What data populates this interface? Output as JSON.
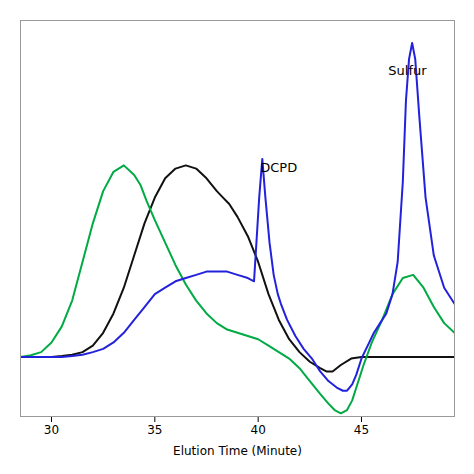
{
  "chart_data": {
    "type": "line",
    "xlabel": "Elution Time (Minute)",
    "xlim": [
      28.5,
      49.5
    ],
    "ylim": [
      -0.18,
      1.05
    ],
    "xticks": [
      30,
      35,
      40,
      45
    ],
    "tick_labels": "x",
    "grid": false,
    "annotations": [
      {
        "text": "DCPD",
        "x": 40.1,
        "y": 0.58
      },
      {
        "text": "Sulfur",
        "x": 46.3,
        "y": 0.88
      }
    ],
    "series": [
      {
        "color": "#111111",
        "x": [
          28.5,
          29.0,
          29.5,
          30.0,
          30.5,
          31.0,
          31.5,
          32.0,
          32.5,
          33.0,
          33.5,
          34.0,
          34.5,
          35.0,
          35.5,
          36.0,
          36.5,
          37.0,
          37.5,
          38.0,
          38.3,
          38.6,
          39.0,
          39.5,
          40.0,
          40.5,
          41.0,
          41.5,
          42.0,
          42.5,
          43.0,
          43.3,
          43.6,
          44.0,
          44.5,
          45.0,
          45.5,
          46.0,
          46.5,
          47.0,
          47.5,
          48.0,
          48.5,
          49.0,
          49.5
        ],
        "values": [
          0.005,
          0.005,
          0.005,
          0.005,
          0.008,
          0.012,
          0.02,
          0.04,
          0.08,
          0.14,
          0.22,
          0.32,
          0.42,
          0.5,
          0.56,
          0.59,
          0.6,
          0.59,
          0.56,
          0.52,
          0.5,
          0.48,
          0.44,
          0.38,
          0.3,
          0.2,
          0.12,
          0.06,
          0.02,
          -0.01,
          -0.03,
          -0.04,
          -0.04,
          -0.02,
          0.0,
          0.005,
          0.005,
          0.005,
          0.005,
          0.005,
          0.005,
          0.005,
          0.005,
          0.005,
          0.005
        ]
      },
      {
        "color": "#00aa44",
        "x": [
          28.5,
          29.0,
          29.5,
          30.0,
          30.5,
          31.0,
          31.5,
          32.0,
          32.5,
          33.0,
          33.5,
          34.0,
          34.3,
          34.6,
          35.0,
          35.5,
          36.0,
          36.5,
          37.0,
          37.5,
          38.0,
          38.5,
          39.0,
          39.5,
          40.0,
          40.5,
          41.0,
          41.5,
          42.0,
          42.5,
          43.0,
          43.4,
          43.7,
          44.0,
          44.3,
          44.55,
          44.8,
          45.1,
          45.5,
          46.0,
          46.5,
          47.0,
          47.5,
          48.0,
          48.5,
          49.0,
          49.5
        ],
        "values": [
          0.005,
          0.01,
          0.02,
          0.05,
          0.1,
          0.18,
          0.3,
          0.42,
          0.52,
          0.58,
          0.6,
          0.57,
          0.54,
          0.49,
          0.43,
          0.36,
          0.29,
          0.23,
          0.18,
          0.14,
          0.11,
          0.09,
          0.08,
          0.07,
          0.06,
          0.04,
          0.02,
          0.0,
          -0.03,
          -0.07,
          -0.11,
          -0.14,
          -0.16,
          -0.17,
          -0.16,
          -0.13,
          -0.08,
          -0.02,
          0.05,
          0.12,
          0.2,
          0.25,
          0.26,
          0.22,
          0.16,
          0.11,
          0.08
        ]
      },
      {
        "color": "#2222dd",
        "x": [
          28.5,
          29.0,
          29.5,
          30.0,
          30.5,
          31.0,
          31.5,
          32.0,
          32.5,
          33.0,
          33.5,
          34.0,
          34.5,
          35.0,
          35.5,
          36.0,
          36.5,
          37.0,
          37.5,
          38.0,
          38.5,
          39.0,
          39.5,
          39.8,
          40.05,
          40.2,
          40.35,
          40.55,
          40.75,
          40.95,
          41.1,
          41.4,
          41.8,
          42.2,
          42.6,
          43.0,
          43.4,
          43.8,
          44.1,
          44.3,
          44.55,
          44.75,
          45.0,
          45.3,
          45.6,
          45.9,
          46.2,
          46.5,
          46.75,
          47.0,
          47.15,
          47.3,
          47.45,
          47.6,
          47.8,
          48.1,
          48.5,
          49.0,
          49.5
        ],
        "values": [
          0.005,
          0.005,
          0.005,
          0.005,
          0.005,
          0.008,
          0.012,
          0.02,
          0.03,
          0.05,
          0.08,
          0.12,
          0.16,
          0.2,
          0.22,
          0.24,
          0.25,
          0.26,
          0.27,
          0.27,
          0.27,
          0.26,
          0.25,
          0.24,
          0.5,
          0.62,
          0.5,
          0.36,
          0.26,
          0.2,
          0.17,
          0.12,
          0.07,
          0.03,
          0.0,
          -0.04,
          -0.07,
          -0.09,
          -0.1,
          -0.1,
          -0.08,
          -0.05,
          0.0,
          0.04,
          0.08,
          0.11,
          0.14,
          0.2,
          0.3,
          0.55,
          0.8,
          0.93,
          0.98,
          0.93,
          0.75,
          0.5,
          0.32,
          0.22,
          0.17
        ]
      }
    ]
  }
}
